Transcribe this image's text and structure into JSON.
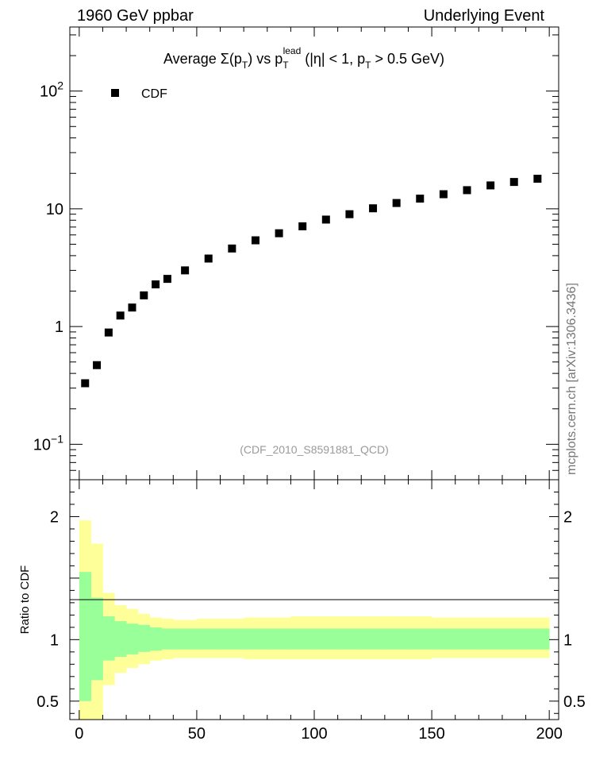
{
  "header": {
    "left": "1960 GeV ppbar",
    "right": "Underlying Event"
  },
  "watermark": "mcplots.cern.ch [arXiv:1306.3436]",
  "analysis_id": "(CDF_2010_S8591881_QCD)",
  "title": {
    "prefix": "Average ",
    "sigma": "Σ(p",
    "sub_T": "T",
    "close": ")",
    "vs": " vs p",
    "sup_lead": "lead",
    "cuts_a": " (|η| < 1, p",
    "cuts_b": " > 0.5 GeV)"
  },
  "legend": {
    "label": "CDF"
  },
  "ratio_ylabel": "Ratio to CDF",
  "colors": {
    "marker": "#000000",
    "band_stat": "#99ff99",
    "band_total": "#ffff99",
    "frame": "#000000",
    "watermark": "#777777"
  },
  "chart_data": [
    {
      "type": "scatter",
      "panel": "main",
      "yscale": "log",
      "xlim": [
        -4,
        204
      ],
      "ylim": [
        0.05,
        350
      ],
      "ytick_labels": [
        {
          "v": 0.1,
          "base": "10",
          "exp": "−1"
        },
        {
          "v": 1,
          "base": "1",
          "exp": ""
        },
        {
          "v": 10,
          "base": "10",
          "exp": ""
        },
        {
          "v": 100,
          "base": "10",
          "exp": "2"
        }
      ],
      "series": [
        {
          "name": "CDF",
          "x": [
            2.5,
            7.5,
            12.5,
            17.5,
            22.5,
            27.5,
            32.5,
            37.5,
            45,
            55,
            65,
            75,
            85,
            95,
            105,
            115,
            125,
            135,
            145,
            155,
            165,
            175,
            185,
            195
          ],
          "y": [
            0.33,
            0.47,
            0.89,
            1.24,
            1.45,
            1.84,
            2.28,
            2.54,
            3.0,
            3.78,
            4.6,
            5.4,
            6.2,
            7.1,
            8.1,
            9.0,
            10.1,
            11.2,
            12.2,
            13.3,
            14.4,
            15.8,
            16.9,
            18.0
          ]
        }
      ]
    },
    {
      "type": "area",
      "panel": "ratio",
      "ylabel": "Ratio to CDF",
      "xlim": [
        -4,
        204
      ],
      "ylim": [
        0.35,
        2.3
      ],
      "xticks": [
        0,
        50,
        100,
        150,
        200
      ],
      "yticks": [
        0.5,
        1,
        2
      ],
      "bin_edges": [
        0,
        5,
        10,
        15,
        20,
        25,
        30,
        35,
        40,
        50,
        60,
        70,
        80,
        90,
        100,
        110,
        120,
        130,
        140,
        150,
        160,
        170,
        180,
        190,
        200
      ],
      "series": [
        {
          "name": "total",
          "lo": [
            0.35,
            0.35,
            0.63,
            0.73,
            0.77,
            0.8,
            0.83,
            0.84,
            0.85,
            0.85,
            0.85,
            0.84,
            0.84,
            0.84,
            0.84,
            0.84,
            0.84,
            0.84,
            0.84,
            0.85,
            0.85,
            0.85,
            0.85,
            0.85
          ],
          "hi": [
            1.97,
            1.78,
            1.38,
            1.28,
            1.25,
            1.21,
            1.18,
            1.17,
            1.16,
            1.17,
            1.17,
            1.18,
            1.18,
            1.19,
            1.19,
            1.19,
            1.19,
            1.19,
            1.19,
            1.18,
            1.18,
            1.18,
            1.18,
            1.18
          ]
        },
        {
          "name": "stat",
          "lo": [
            0.5,
            0.67,
            0.83,
            0.86,
            0.88,
            0.9,
            0.91,
            0.92,
            0.92,
            0.92,
            0.92,
            0.92,
            0.92,
            0.92,
            0.92,
            0.92,
            0.92,
            0.92,
            0.92,
            0.92,
            0.92,
            0.92,
            0.92,
            0.92
          ],
          "hi": [
            1.55,
            1.34,
            1.19,
            1.15,
            1.13,
            1.12,
            1.1,
            1.09,
            1.09,
            1.09,
            1.09,
            1.09,
            1.09,
            1.09,
            1.09,
            1.09,
            1.09,
            1.09,
            1.09,
            1.09,
            1.09,
            1.09,
            1.09,
            1.09
          ]
        }
      ]
    }
  ]
}
